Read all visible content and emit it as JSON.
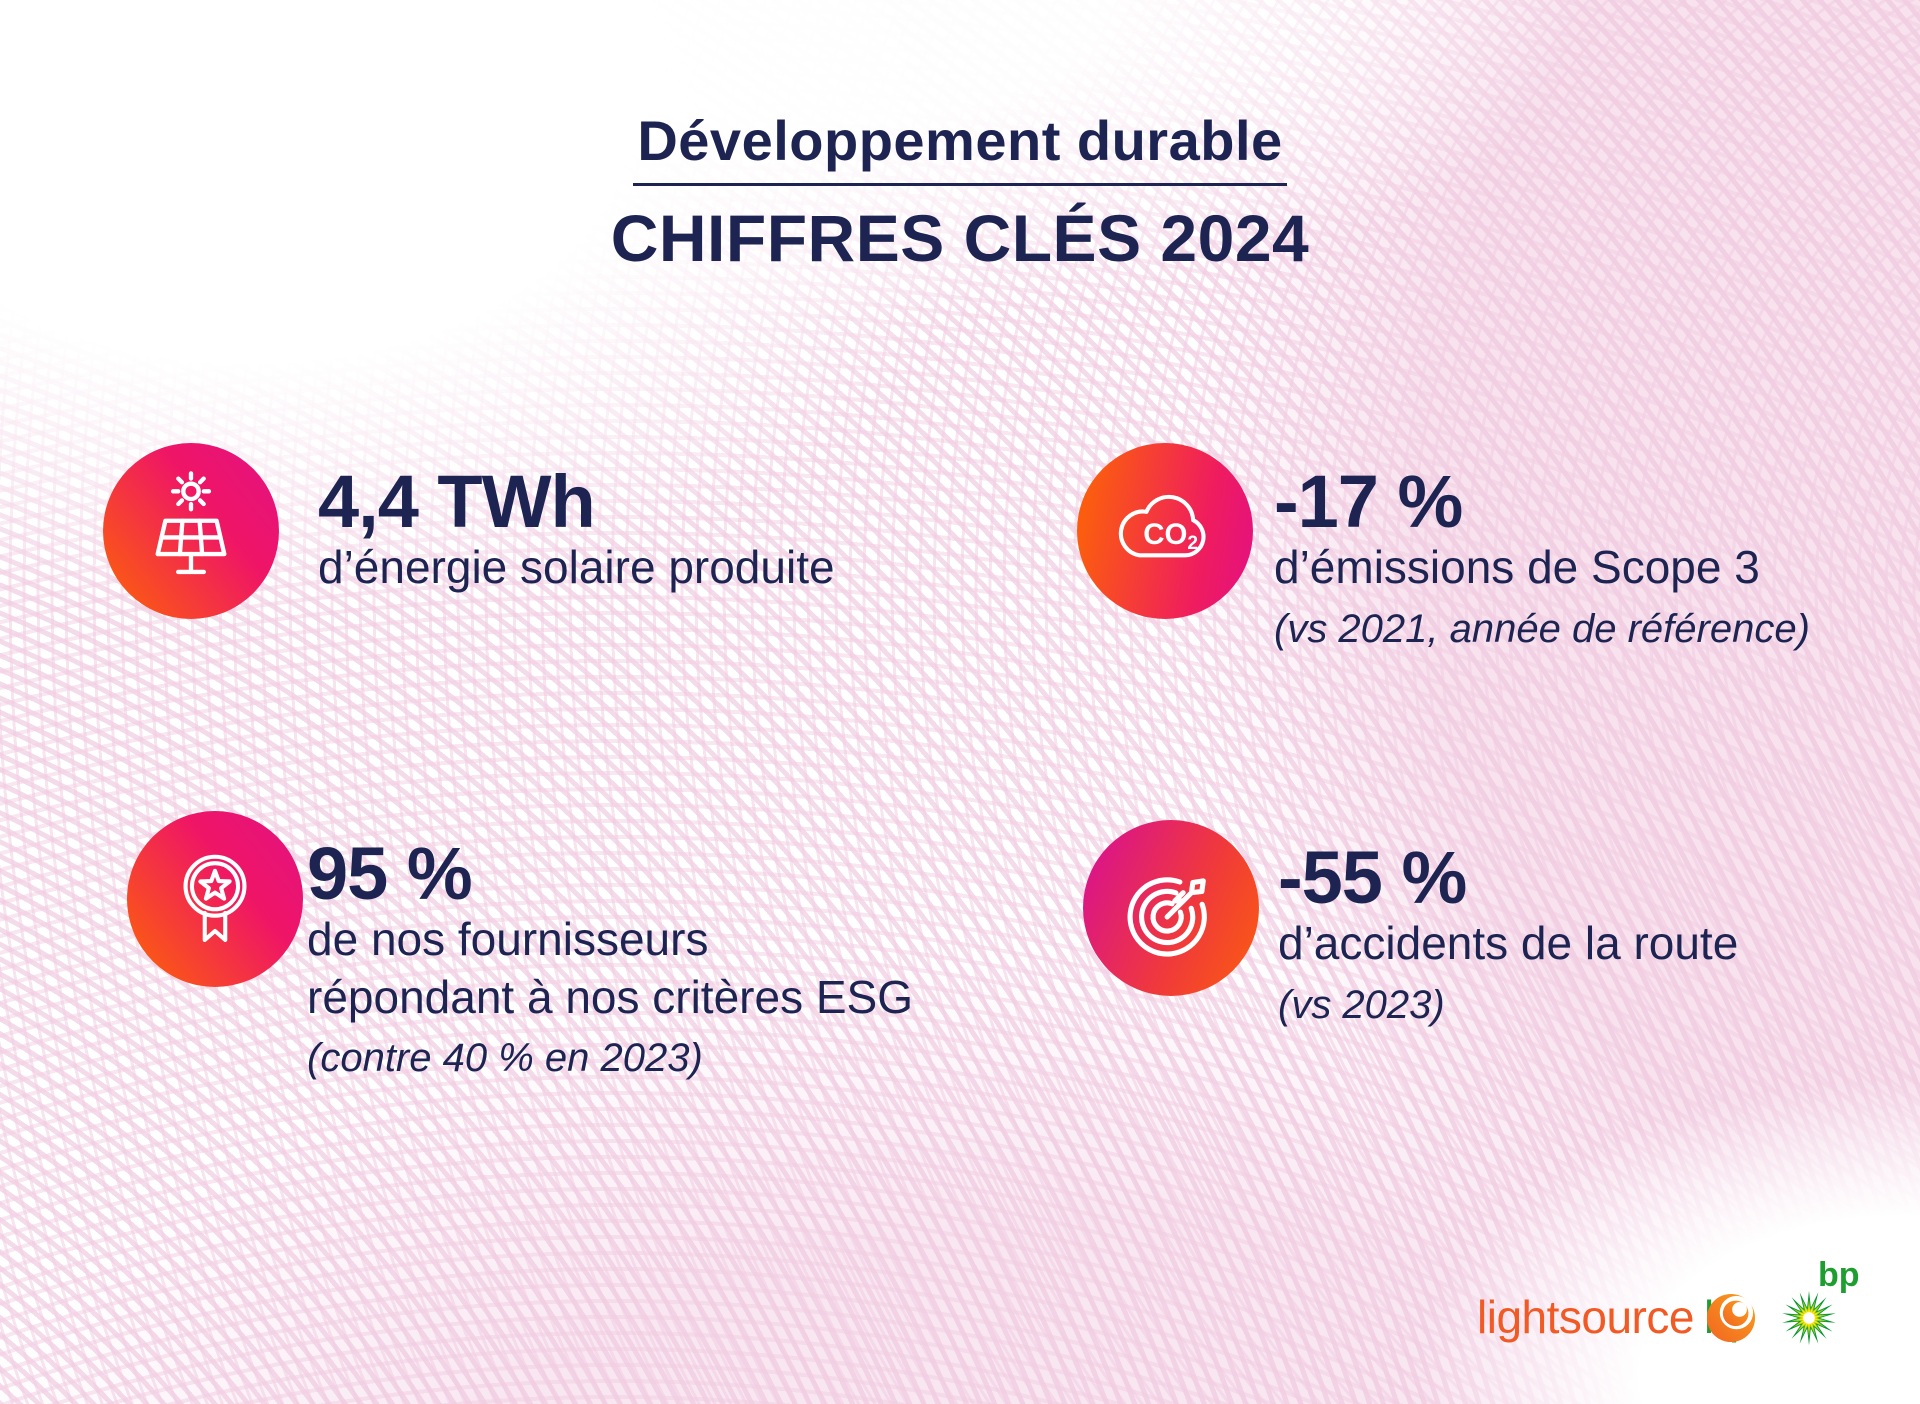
{
  "header": {
    "subtitle": "Développement durable",
    "title": "CHIFFRES CLÉS 2024"
  },
  "stats": [
    {
      "id": "solar",
      "icon": "solar-panel-icon",
      "value": "4,4 TWh",
      "line1": "d’énergie solaire produite"
    },
    {
      "id": "scope3",
      "icon": "co2-cloud-icon",
      "value": "-17 %",
      "line1": "d’émissions de Scope 3",
      "note": "(vs 2021, année de référence)"
    },
    {
      "id": "suppliers",
      "icon": "award-medal-icon",
      "value": "95 %",
      "line1": "de nos fournisseurs",
      "line2": "répondant à nos critères ESG",
      "note": "(contre 40 % en 2023)"
    },
    {
      "id": "road",
      "icon": "target-dart-icon",
      "value": "-55 %",
      "line1": "d’accidents de  la route",
      "note": "(vs 2023)"
    }
  ],
  "icon_labels": {
    "co2_main": "CO",
    "co2_sub": "2"
  },
  "footer": {
    "brand_lightsource": "lightsource",
    "brand_bp_suffix": "bp",
    "bp_logo_label": "bp"
  },
  "colors": {
    "navy_text": "#1d2452",
    "gradient_orange": "#fb5c10",
    "gradient_magenta": "#e5127d",
    "background_pink_lines": "#f2cde2",
    "background_pink_fill": "#f7e2ee",
    "lightsource_orange": "#f15a24",
    "bp_green_dark": "#00962c",
    "bp_green_light": "#9aca24",
    "bp_yellow": "#ffe600",
    "bp_text_green": "#1e9d31"
  }
}
